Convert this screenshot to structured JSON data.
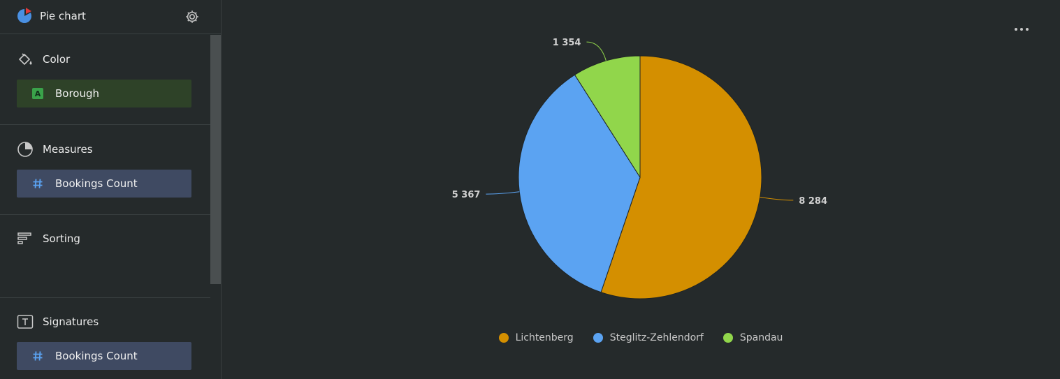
{
  "sidebar": {
    "title": "Pie chart",
    "sections": {
      "color": {
        "label": "Color",
        "chip": "Borough",
        "chip_type_badge": "A"
      },
      "measures": {
        "label": "Measures",
        "chip": "Bookings Count"
      },
      "sorting": {
        "label": "Sorting"
      },
      "signatures": {
        "label": "Signatures",
        "chip": "Bookings Count"
      }
    }
  },
  "colors": {
    "lichtenberg": "#d48f00",
    "steglitz": "#5ba3f2",
    "spandau": "#91d64b",
    "accent_red": "#e23a3a",
    "accent_blue": "#4a90e2"
  },
  "chart_data": {
    "type": "pie",
    "categories": [
      "Lichtenberg",
      "Steglitz-Zehlendorf",
      "Spandau"
    ],
    "values": [
      8284,
      5367,
      1354
    ],
    "value_labels": [
      "8 284",
      "5 367",
      "1 354"
    ],
    "legend": "bottom"
  }
}
